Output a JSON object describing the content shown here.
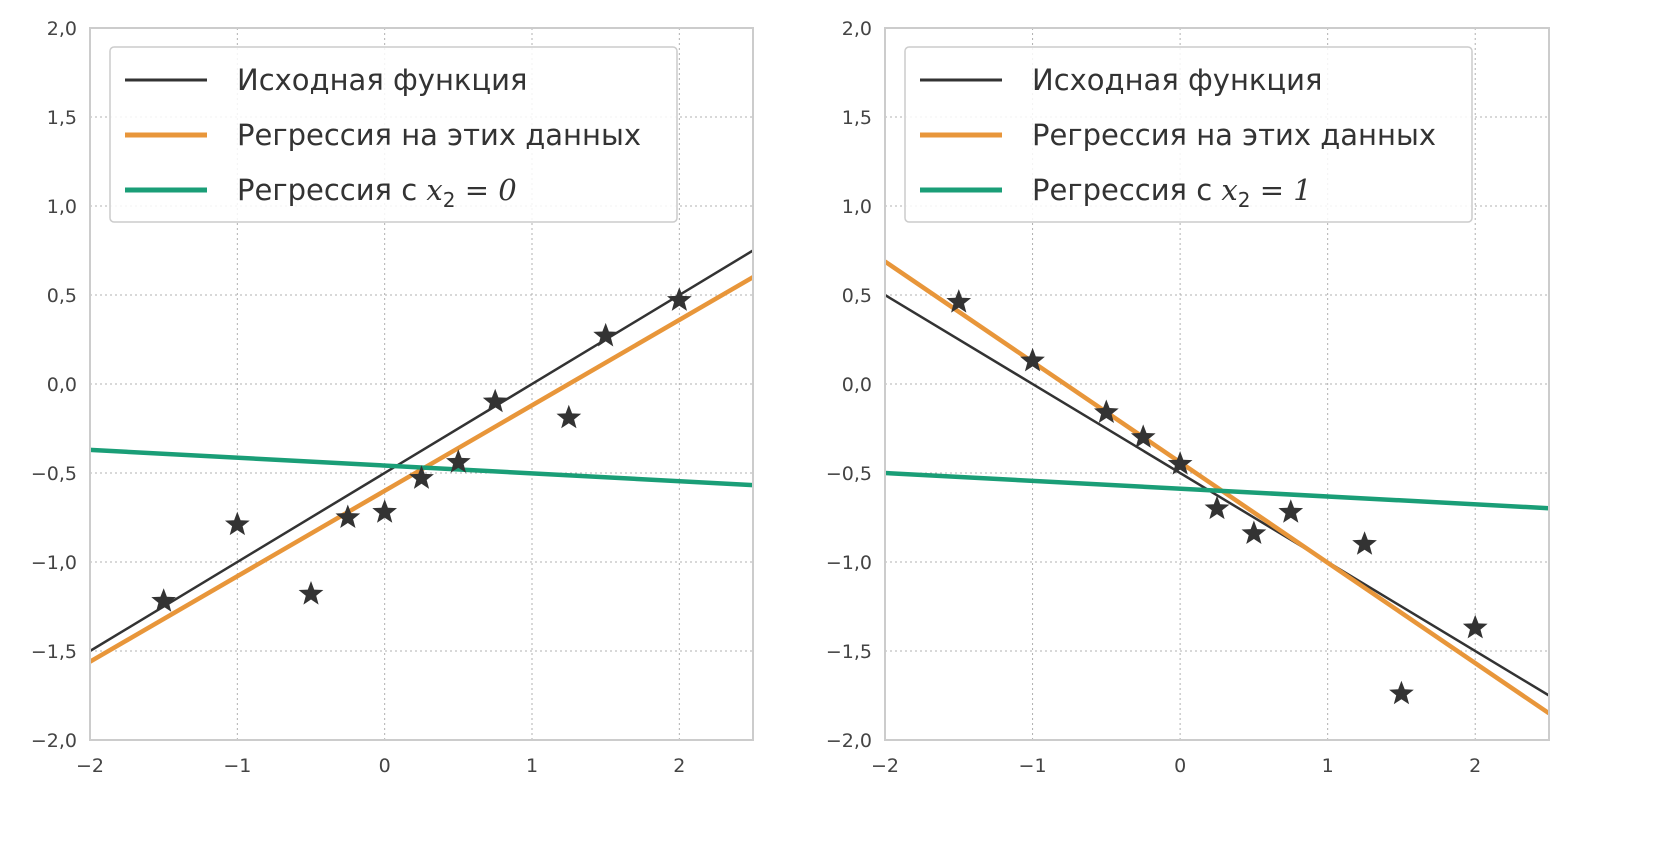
{
  "colors": {
    "true_fn": "#333333",
    "regression": "#e8963a",
    "regression_fixed": "#1a9e77",
    "stars": "#333333",
    "grid": "#b0b0b0",
    "frame": "#cccccc"
  },
  "chart_data": [
    {
      "type": "line",
      "xlim": [
        -2,
        2.5
      ],
      "ylim": [
        -2,
        2
      ],
      "xticks": [
        -2,
        -1,
        0,
        1,
        2
      ],
      "xtick_labels": [
        "−2",
        "−1",
        "0",
        "1",
        "2"
      ],
      "yticks": [
        -2,
        -1.5,
        -1,
        -0.5,
        0,
        0.5,
        1,
        1.5,
        2
      ],
      "ytick_labels": [
        "−2,0",
        "−1,5",
        "−1,0",
        "−0,5",
        "0,0",
        "0,5",
        "1,0",
        "1,5",
        "2,0"
      ],
      "grid": true,
      "legend_position": "top-left",
      "series": [
        {
          "name": "Исходная функция",
          "kind": "line",
          "slope": 0.5,
          "intercept": -0.5,
          "color_key": "true_fn"
        },
        {
          "name": "Регрессия на этих данных",
          "kind": "line",
          "slope": 0.48,
          "intercept": -0.6,
          "color_key": "regression"
        },
        {
          "name": "Регрессия с x2 = 0",
          "kind": "line",
          "slope": -0.044,
          "intercept": -0.458,
          "color_key": "regression_fixed"
        },
        {
          "name": "data",
          "kind": "scatter",
          "x": [
            -1.5,
            -1,
            -0.5,
            -0.25,
            0,
            0.25,
            0.5,
            0.75,
            1.25,
            1.5,
            2
          ],
          "y": [
            -1.22,
            -0.79,
            -1.18,
            -0.75,
            -0.72,
            -0.53,
            -0.44,
            -0.1,
            -0.19,
            0.27,
            0.47
          ]
        }
      ],
      "legend": [
        {
          "text": "Исходная функция",
          "color_key": "true_fn",
          "w": 3
        },
        {
          "text": "Регрессия на этих данных",
          "color_key": "regression",
          "w": 5
        },
        {
          "text": "Регрессия с ",
          "math_var": "x",
          "math_sub": "2",
          "math_rest": " = 0",
          "color_key": "regression_fixed",
          "w": 5
        }
      ]
    },
    {
      "type": "line",
      "xlim": [
        -2,
        2.5
      ],
      "ylim": [
        -2,
        2
      ],
      "xticks": [
        -2,
        -1,
        0,
        1,
        2
      ],
      "xtick_labels": [
        "−2",
        "−1",
        "0",
        "1",
        "2"
      ],
      "yticks": [
        -2,
        -1.5,
        -1,
        -0.5,
        0,
        0.5,
        1,
        1.5,
        2
      ],
      "ytick_labels": [
        "−2,0",
        "−1,5",
        "−1,0",
        "−0,5",
        "0,0",
        "0,5",
        "1,0",
        "1,5",
        "2,0"
      ],
      "grid": true,
      "legend_position": "top-left",
      "series": [
        {
          "name": "Исходная функция",
          "kind": "line",
          "slope": -0.5,
          "intercept": -0.5,
          "color_key": "true_fn"
        },
        {
          "name": "Регрессия на этих данных",
          "kind": "line",
          "slope": -0.564,
          "intercept": -0.44,
          "color_key": "regression"
        },
        {
          "name": "Регрессия с x2 = 1",
          "kind": "line",
          "slope": -0.044,
          "intercept": -0.588,
          "color_key": "regression_fixed"
        },
        {
          "name": "data",
          "kind": "scatter",
          "x": [
            -1.5,
            -1,
            -0.5,
            -0.25,
            0,
            0.25,
            0.5,
            0.75,
            1.25,
            1.5,
            2
          ],
          "y": [
            0.46,
            0.13,
            -0.16,
            -0.3,
            -0.45,
            -0.7,
            -0.84,
            -0.72,
            -0.9,
            -1.74,
            -1.37
          ]
        }
      ],
      "legend": [
        {
          "text": "Исходная функция",
          "color_key": "true_fn",
          "w": 3
        },
        {
          "text": "Регрессия на этих данных",
          "color_key": "regression",
          "w": 5
        },
        {
          "text": "Регрессия с ",
          "math_var": "x",
          "math_sub": "2",
          "math_rest": " = 1",
          "color_key": "regression_fixed",
          "w": 5
        }
      ]
    }
  ]
}
